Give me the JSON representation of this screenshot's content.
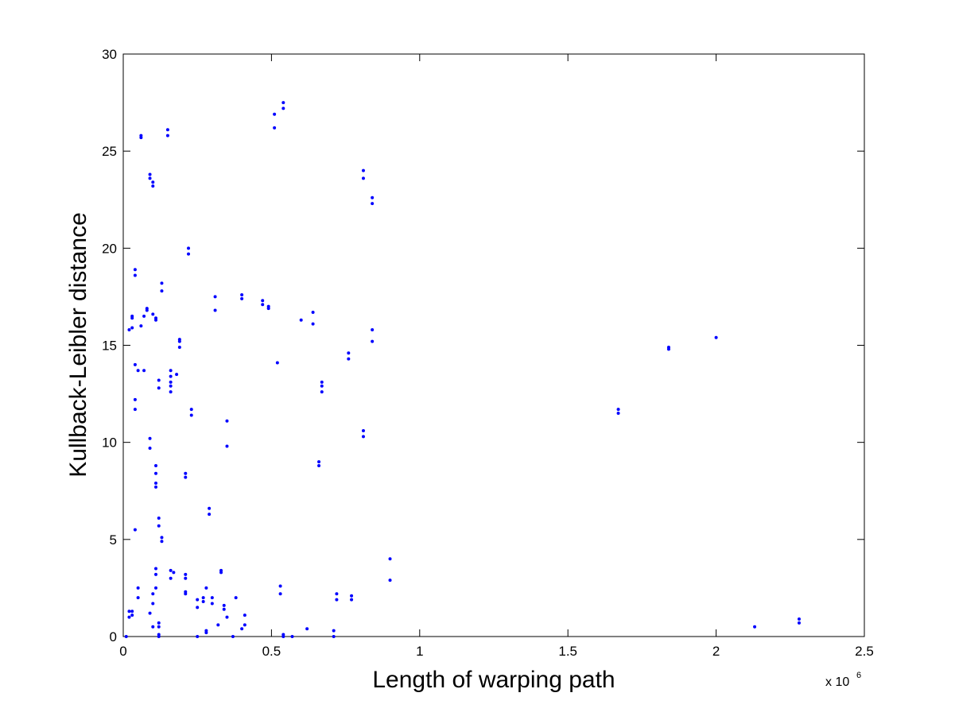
{
  "chart_data": {
    "type": "scatter",
    "xlabel": "Length of warping path",
    "ylabel": "Kullback-Leibler distance",
    "x_multiplier": {
      "base": "x 10",
      "exponent": "6"
    },
    "color": "#0000ff",
    "xlim": [
      0,
      2.5
    ],
    "xticks": [
      0,
      0.5,
      1,
      1.5,
      2,
      2.5
    ],
    "ylim": [
      0,
      30
    ],
    "yticks": [
      0,
      5,
      10,
      15,
      20,
      25,
      30
    ],
    "grid": false,
    "x": [
      0.01,
      0.02,
      0.02,
      0.03,
      0.03,
      0.04,
      0.05,
      0.05,
      0.02,
      0.03,
      0.03,
      0.03,
      0.04,
      0.04,
      0.04,
      0.05,
      0.06,
      0.06,
      0.04,
      0.04,
      0.06,
      0.07,
      0.07,
      0.08,
      0.08,
      0.1,
      0.11,
      0.11,
      0.09,
      0.09,
      0.1,
      0.1,
      0.09,
      0.09,
      0.1,
      0.1,
      0.09,
      0.1,
      0.11,
      0.11,
      0.11,
      0.12,
      0.12,
      0.12,
      0.12,
      0.11,
      0.11,
      0.11,
      0.11,
      0.12,
      0.12,
      0.13,
      0.13,
      0.12,
      0.12,
      0.13,
      0.13,
      0.15,
      0.15,
      0.16,
      0.16,
      0.16,
      0.16,
      0.16,
      0.16,
      0.16,
      0.17,
      0.18,
      0.19,
      0.19,
      0.19,
      0.21,
      0.21,
      0.21,
      0.21,
      0.21,
      0.21,
      0.22,
      0.22,
      0.23,
      0.23,
      0.25,
      0.25,
      0.25,
      0.27,
      0.27,
      0.28,
      0.28,
      0.28,
      0.29,
      0.29,
      0.3,
      0.3,
      0.31,
      0.31,
      0.32,
      0.33,
      0.33,
      0.34,
      0.34,
      0.35,
      0.35,
      0.35,
      0.37,
      0.38,
      0.4,
      0.4,
      0.4,
      0.41,
      0.41,
      0.47,
      0.47,
      0.49,
      0.49,
      0.51,
      0.51,
      0.52,
      0.53,
      0.53,
      0.54,
      0.54,
      0.54,
      0.54,
      0.57,
      0.6,
      0.62,
      0.64,
      0.64,
      0.66,
      0.66,
      0.67,
      0.67,
      0.67,
      0.71,
      0.71,
      0.72,
      0.72,
      0.76,
      0.76,
      0.77,
      0.77,
      0.81,
      0.81,
      0.81,
      0.81,
      0.84,
      0.84,
      0.84,
      0.84,
      0.9,
      0.9,
      1.67,
      1.67,
      1.84,
      1.84,
      2.0,
      2.13,
      2.28,
      2.28
    ],
    "values": [
      0.0,
      1.0,
      1.3,
      1.3,
      1.1,
      5.5,
      2.5,
      2.0,
      15.8,
      15.9,
      16.4,
      16.5,
      18.9,
      18.6,
      14.0,
      13.7,
      25.8,
      25.7,
      12.2,
      11.7,
      16.0,
      16.5,
      13.7,
      16.8,
      16.9,
      16.6,
      16.3,
      16.4,
      23.8,
      23.6,
      23.4,
      23.2,
      10.2,
      9.7,
      2.2,
      1.7,
      1.2,
      0.5,
      3.5,
      3.2,
      2.5,
      0.7,
      0.5,
      0.1,
      0.0,
      8.8,
      8.4,
      7.9,
      7.7,
      6.1,
      5.7,
      5.1,
      4.9,
      13.2,
      12.8,
      18.2,
      17.8,
      26.1,
      25.8,
      13.7,
      13.4,
      13.1,
      12.9,
      12.6,
      3.4,
      3.0,
      3.3,
      13.5,
      15.3,
      15.2,
      14.9,
      8.4,
      8.2,
      3.2,
      3.0,
      2.3,
      2.2,
      20.0,
      19.7,
      11.7,
      11.4,
      1.9,
      1.5,
      0.0,
      2.0,
      1.8,
      2.5,
      0.3,
      0.2,
      6.6,
      6.3,
      2.0,
      1.7,
      17.5,
      16.8,
      0.6,
      3.4,
      3.3,
      1.6,
      1.4,
      1.0,
      11.1,
      9.8,
      0.0,
      2.0,
      17.6,
      17.4,
      0.4,
      0.6,
      1.1,
      17.3,
      17.1,
      17.0,
      16.9,
      26.9,
      26.2,
      14.1,
      2.6,
      2.2,
      27.5,
      27.2,
      0.1,
      0.0,
      0.0,
      16.3,
      0.4,
      16.7,
      16.1,
      9.0,
      8.8,
      13.1,
      12.9,
      12.6,
      0.3,
      0.0,
      2.2,
      1.9,
      14.6,
      14.3,
      2.1,
      1.9,
      24.0,
      23.6,
      10.6,
      10.3,
      22.6,
      22.3,
      15.8,
      15.2,
      4.0,
      2.9,
      11.7,
      11.5,
      14.9,
      14.8,
      15.4,
      0.5,
      0.9,
      0.7
    ]
  }
}
